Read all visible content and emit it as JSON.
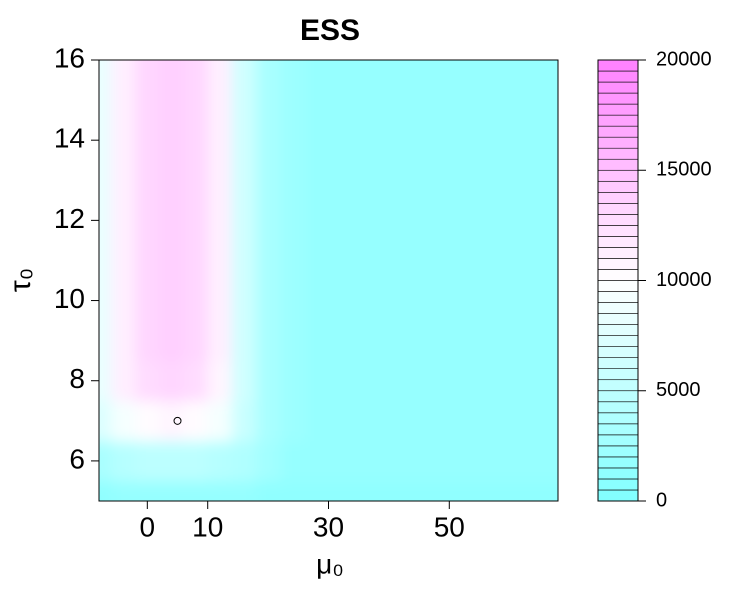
{
  "chart_data": {
    "type": "filled-contour",
    "title": "ESS",
    "xlabel": "μ₀",
    "ylabel": "τ₀",
    "x": [
      -8,
      -4,
      0,
      4,
      8,
      12,
      16,
      20,
      24,
      28,
      32,
      36,
      40,
      44,
      48,
      52,
      56,
      60,
      64,
      68
    ],
    "y": [
      5,
      6,
      7,
      8,
      9,
      10,
      11,
      12,
      13,
      14,
      15,
      16
    ],
    "z": [
      [
        1000,
        1500,
        1800,
        1800,
        1800,
        1700,
        1500,
        1200,
        1000,
        1000,
        1000,
        1000,
        1000,
        1000,
        1000,
        1000,
        1000,
        1000,
        1000,
        1000
      ],
      [
        3000,
        4000,
        4500,
        4500,
        4500,
        4000,
        3500,
        2500,
        1800,
        1500,
        1500,
        1500,
        1500,
        1500,
        1500,
        1500,
        1500,
        1500,
        1500,
        1500
      ],
      [
        7000,
        9000,
        10000,
        10500,
        10000,
        9000,
        5500,
        3000,
        2000,
        1500,
        1500,
        1500,
        1500,
        1500,
        1500,
        1500,
        1500,
        1500,
        1500,
        1500
      ],
      [
        8000,
        11000,
        12500,
        13000,
        12500,
        10500,
        6000,
        3000,
        2000,
        1500,
        1500,
        1500,
        1500,
        1500,
        1500,
        1500,
        1500,
        1500,
        1500,
        1500
      ],
      [
        8000,
        11000,
        13000,
        13500,
        13000,
        11000,
        6000,
        3000,
        2000,
        1500,
        1500,
        1500,
        1500,
        1500,
        1500,
        1500,
        1500,
        1500,
        1500,
        1500
      ],
      [
        8000,
        11000,
        13000,
        13500,
        13000,
        11000,
        6000,
        3000,
        2000,
        1500,
        1500,
        1500,
        1500,
        1500,
        1500,
        1500,
        1500,
        1500,
        1500,
        1500
      ],
      [
        8000,
        11000,
        13000,
        13500,
        13000,
        11000,
        6000,
        3000,
        2000,
        1500,
        1500,
        1500,
        1500,
        1500,
        1500,
        1500,
        1500,
        1500,
        1500,
        1500
      ],
      [
        8000,
        11000,
        13000,
        13500,
        13000,
        11000,
        6000,
        3000,
        2000,
        1500,
        1500,
        1500,
        1500,
        1500,
        1500,
        1500,
        1500,
        1500,
        1500,
        1500
      ],
      [
        8000,
        11000,
        13000,
        13500,
        13000,
        11000,
        6000,
        3000,
        2000,
        1500,
        1500,
        1500,
        1500,
        1500,
        1500,
        1500,
        1500,
        1500,
        1500,
        1500
      ],
      [
        8000,
        11000,
        13000,
        13500,
        13000,
        11000,
        6000,
        3000,
        2000,
        1500,
        1500,
        1500,
        1500,
        1500,
        1500,
        1500,
        1500,
        1500,
        1500,
        1500
      ],
      [
        8000,
        11000,
        13000,
        13500,
        13000,
        11000,
        6000,
        3000,
        2000,
        1500,
        1500,
        1500,
        1500,
        1500,
        1500,
        1500,
        1500,
        1500,
        1500,
        1500
      ],
      [
        8000,
        11000,
        13000,
        13500,
        13000,
        11000,
        6000,
        3000,
        2000,
        1500,
        1500,
        1500,
        1500,
        1500,
        1500,
        1500,
        1500,
        1500,
        1500,
        1500
      ]
    ],
    "point": {
      "x": 5,
      "y": 7
    },
    "xlim": [
      -8,
      68
    ],
    "ylim": [
      5,
      16
    ],
    "xticks": [
      0,
      10,
      30,
      50
    ],
    "yticks": [
      6,
      8,
      10,
      12,
      14,
      16
    ],
    "zlim": [
      0,
      20000
    ],
    "zticks": [
      0,
      5000,
      10000,
      15000,
      20000
    ],
    "nlevels": 40,
    "colormap": [
      "#80ffff",
      "#ffffff",
      "#ff80ff"
    ]
  }
}
